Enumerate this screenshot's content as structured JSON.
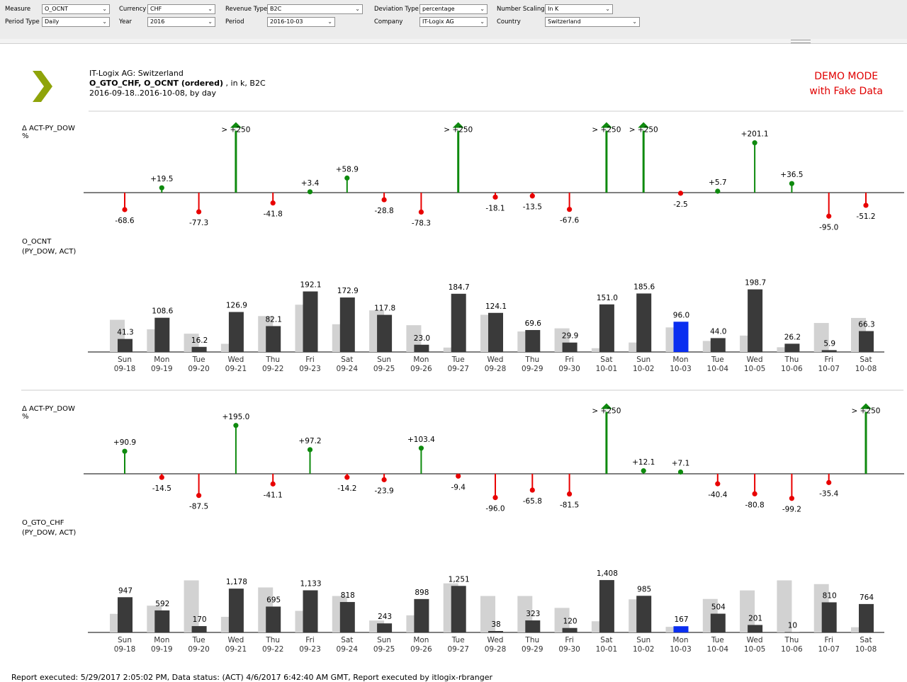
{
  "filters": {
    "measure": {
      "label": "Measure",
      "value": "O_OCNT"
    },
    "period_type": {
      "label": "Period Type",
      "value": "Daily"
    },
    "currency": {
      "label": "Currency",
      "value": "CHF"
    },
    "year": {
      "label": "Year",
      "value": "2016"
    },
    "revenue_type": {
      "label": "Revenue Type",
      "value": "B2C"
    },
    "period": {
      "label": "Period",
      "value": "2016-10-03"
    },
    "deviation_type": {
      "label": "Deviation Type",
      "value": "percentage"
    },
    "company": {
      "label": "Company",
      "value": "IT-Logix AG"
    },
    "number_scaling": {
      "label": "Number Scaling",
      "value": "In K"
    },
    "country": {
      "label": "Country",
      "value": "Switzerland"
    }
  },
  "header": {
    "line1": "IT-Logix AG: Switzerland",
    "line2_bold": "O_GTO_CHF, O_OCNT (ordered)",
    "line2_rest": " , in k, B2C",
    "line3": "2016-09-18..2016-10-08, by day",
    "demo_line1": "DEMO MODE",
    "demo_line2": "with Fake Data"
  },
  "footer": "Report executed: 5/29/2017 2:05:02 PM, Data status: (ACT) 4/6/2017 6:42:40 AM GMT, Report executed by itlogix-rbranger",
  "colors": {
    "positive": "#0e8a0e",
    "negative": "#e80000",
    "act": "#3a3a3a",
    "py": "#d2d2d2",
    "highlight": "#0a2ef0"
  },
  "chart_data": [
    {
      "type": "bar",
      "title": "Δ ACT-PY_DOW",
      "unit": "%",
      "x_weekday": [
        "Sun",
        "Mon",
        "Tue",
        "Wed",
        "Thu",
        "Fri",
        "Sat",
        "Sun",
        "Mon",
        "Tue",
        "Wed",
        "Thu",
        "Fri",
        "Sat",
        "Sun",
        "Mon",
        "Tue",
        "Wed",
        "Thu",
        "Fri",
        "Sat"
      ],
      "x_date": [
        "09-18",
        "09-19",
        "09-20",
        "09-21",
        "09-22",
        "09-23",
        "09-24",
        "09-25",
        "09-26",
        "09-27",
        "09-28",
        "09-29",
        "09-30",
        "10-01",
        "10-02",
        "10-03",
        "10-04",
        "10-05",
        "10-06",
        "10-07",
        "10-08"
      ],
      "values": [
        -68.6,
        19.5,
        -77.3,
        250,
        -41.8,
        3.4,
        58.9,
        -28.8,
        -78.3,
        250,
        -18.1,
        -13.5,
        -67.6,
        250,
        250,
        -2.5,
        5.7,
        201.1,
        36.5,
        -95.0,
        -51.2
      ],
      "labels": [
        "-68.6",
        "+19.5",
        "-77.3",
        "> +250",
        "-41.8",
        "+3.4",
        "+58.9",
        "-28.8",
        "-78.3",
        "> +250",
        "-18.1",
        "-13.5",
        "-67.6",
        "> +250",
        "> +250",
        "-2.5",
        "+5.7",
        "+201.1",
        "+36.5",
        "-95.0",
        "-51.2"
      ],
      "clipped_above": 250
    },
    {
      "type": "bar",
      "title": "O_OCNT",
      "subtitle": "(PY_DOW, ACT)",
      "series": [
        {
          "name": "PY_DOW",
          "values": [
            102.0,
            72.0,
            58.0,
            26.0,
            114.0,
            150.0,
            88.0,
            132.0,
            85.0,
            14.0,
            118.0,
            65.0,
            75.0,
            12.0,
            30.0,
            78.0,
            35.0,
            52.0,
            15.0,
            92.0,
            108.0
          ]
        },
        {
          "name": "ACT",
          "values": [
            41.3,
            108.6,
            16.2,
            126.9,
            82.1,
            192.1,
            172.9,
            117.8,
            23.0,
            184.7,
            124.1,
            69.6,
            29.9,
            151.0,
            185.6,
            96.0,
            44.0,
            198.7,
            26.2,
            5.9,
            66.3
          ]
        }
      ],
      "labels": [
        "41.3",
        "108.6",
        "16.2",
        "126.9",
        "82.1",
        "192.1",
        "172.9",
        "117.8",
        "23.0",
        "184.7",
        "124.1",
        "69.6",
        "29.9",
        "151.0",
        "185.6",
        "96.0",
        "44.0",
        "198.7",
        "26.2",
        "5.9",
        "66.3"
      ],
      "highlight_index": 15
    },
    {
      "type": "bar",
      "title": "Δ ACT-PY_DOW",
      "unit": "%",
      "values": [
        90.9,
        -14.5,
        -87.5,
        195.0,
        -41.1,
        97.2,
        -14.2,
        -23.9,
        103.4,
        -9.4,
        -96.0,
        -65.8,
        -81.5,
        250,
        12.1,
        7.1,
        -40.4,
        -80.8,
        -99.2,
        -35.4,
        250
      ],
      "labels": [
        "+90.9",
        "-14.5",
        "-87.5",
        "+195.0",
        "-41.1",
        "+97.2",
        "-14.2",
        "-23.9",
        "+103.4",
        "-9.4",
        "-96.0",
        "-65.8",
        "-81.5",
        "> +250",
        "+12.1",
        "+7.1",
        "-40.4",
        "-80.8",
        "-99.2",
        "-35.4",
        "> +250"
      ],
      "clipped_above": 250
    },
    {
      "type": "bar",
      "title": "O_GTO_CHF",
      "subtitle": "(PY_DOW, ACT)",
      "series": [
        {
          "name": "PY_DOW",
          "values": [
            500,
            720,
            1400,
            420,
            1210,
            580,
            980,
            320,
            460,
            1320,
            980,
            980,
            660,
            300,
            890,
            150,
            900,
            1130,
            1400,
            1300,
            140
          ]
        },
        {
          "name": "ACT",
          "values": [
            947,
            592,
            170,
            1178,
            695,
            1133,
            818,
            243,
            898,
            1251,
            38,
            323,
            120,
            1408,
            985,
            167,
            504,
            201,
            10,
            810,
            764
          ]
        }
      ],
      "labels": [
        "947",
        "592",
        "170",
        "1,178",
        "695",
        "1,133",
        "818",
        "243",
        "898",
        "1,251",
        "38",
        "323",
        "120",
        "1,408",
        "985",
        "167",
        "504",
        "201",
        "10",
        "810",
        "764"
      ],
      "highlight_index": 15
    }
  ]
}
